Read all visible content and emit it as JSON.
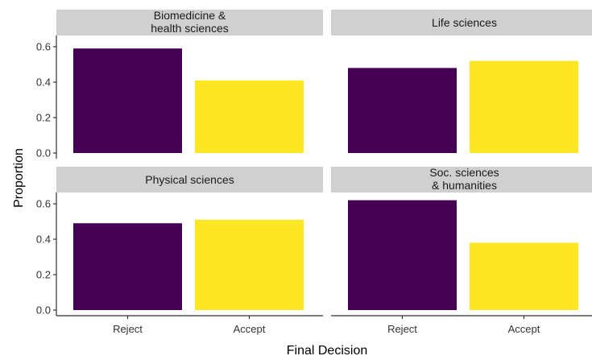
{
  "chart_data": {
    "type": "bar",
    "layout": "facet-grid 2x2",
    "xlabel": "Final Decision",
    "ylabel": "Proportion",
    "categories": [
      "Reject",
      "Accept"
    ],
    "colors": {
      "Reject": "#440154",
      "Accept": "#FDE725"
    },
    "ylim": [
      0,
      0.65
    ],
    "yticks": [
      "0.0",
      "0.2",
      "0.4",
      "0.6"
    ],
    "grid": false,
    "legend": "none",
    "panels": [
      {
        "title": "Biomedicine &\nhealth sciences",
        "values": [
          0.59,
          0.41
        ]
      },
      {
        "title": "Life sciences",
        "values": [
          0.48,
          0.52
        ]
      },
      {
        "title": "Physical sciences",
        "values": [
          0.49,
          0.51
        ]
      },
      {
        "title": "Soc. sciences\n& humanities",
        "values": [
          0.62,
          0.38
        ]
      }
    ]
  }
}
